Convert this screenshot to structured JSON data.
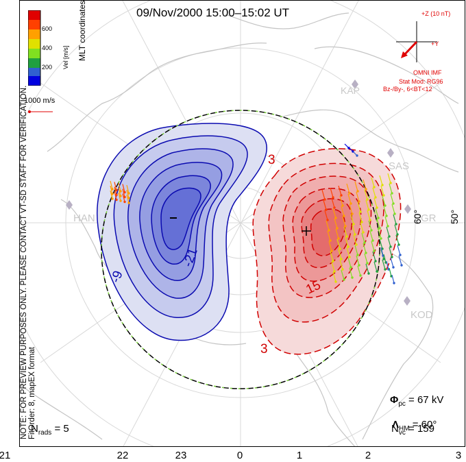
{
  "title": "09/Nov/2000  15:00–15:02  UT",
  "coords": "MLT coordinates",
  "colorbar": {
    "label": "Vel [m/s]",
    "ticks": [
      "600",
      "400",
      "200"
    ],
    "colors": [
      "#0000e0",
      "#3060d0",
      "#20a040",
      "#80e020",
      "#e0e000",
      "#ffa000",
      "#ff4000",
      "#e00000"
    ]
  },
  "vector_scale": "1000 m/s",
  "imf": {
    "plus_z": "+Z (10 nT)",
    "plus_y": "+Y",
    "source": "OMNI IMF",
    "model": "Stat Mod: RG96",
    "condition": "Bz-/By-, 6<BT<12"
  },
  "stations": [
    "KAP",
    "SAS",
    "HAN",
    "PGR",
    "KOD"
  ],
  "lat_labels": [
    "60°",
    "50°"
  ],
  "contour_labels": {
    "neg": [
      "-9",
      "-21"
    ],
    "pos": [
      "3",
      "15",
      "3"
    ]
  },
  "centers": {
    "min": "−",
    "max": "+"
  },
  "stats": {
    "phi_pc": "Φ",
    "phi_pc_sub": "pc",
    "phi_pc_value": " = 67 kV",
    "lambda": "Λ",
    "lambda_sub": "HM",
    "lambda_value": " = 60°",
    "nvc": "N",
    "nvc_sub": "vc",
    "nvc_value": " = 159",
    "nrads": "N",
    "nrads_sub": "rads",
    "nrads_value": " = 5"
  },
  "notes": [
    "NOTE: FOR PREVIEW PURPOSES ONLY. PLEASE CONTACT VT-SD STAFF FOR VERIFICATION.",
    "FitOrder: 8, mapEX format"
  ],
  "mlt_ticks": [
    "21",
    "22",
    "23",
    "0",
    "1",
    "2",
    "3"
  ]
}
